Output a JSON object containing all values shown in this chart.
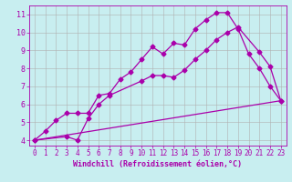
{
  "title": "",
  "xlabel": "Windchill (Refroidissement éolien,°C)",
  "ylabel": "",
  "xlim": [
    -0.5,
    23.5
  ],
  "ylim": [
    3.7,
    11.5
  ],
  "xticks": [
    0,
    1,
    2,
    3,
    4,
    5,
    6,
    7,
    8,
    9,
    10,
    11,
    12,
    13,
    14,
    15,
    16,
    17,
    18,
    19,
    20,
    21,
    22,
    23
  ],
  "yticks": [
    4,
    5,
    6,
    7,
    8,
    9,
    10,
    11
  ],
  "bg_color": "#c8eef0",
  "line_color": "#aa00aa",
  "grid_color": "#b0b0b0",
  "line1_x": [
    0,
    1,
    2,
    3,
    4,
    5,
    6,
    7,
    8,
    9,
    10,
    11,
    12,
    13,
    14,
    15,
    16,
    17,
    18,
    19,
    20,
    21,
    22,
    23
  ],
  "line1_y": [
    4.0,
    4.5,
    5.1,
    5.5,
    5.5,
    5.5,
    6.5,
    6.6,
    7.4,
    7.8,
    8.5,
    9.2,
    8.8,
    9.4,
    9.3,
    10.2,
    10.7,
    11.1,
    11.1,
    10.2,
    8.8,
    8.0,
    7.0,
    6.2
  ],
  "line2_x": [
    0,
    3,
    4,
    5,
    6,
    7,
    10,
    11,
    12,
    13,
    14,
    15,
    16,
    17,
    18,
    19,
    21,
    22,
    23
  ],
  "line2_y": [
    4.0,
    4.2,
    4.0,
    5.2,
    6.0,
    6.5,
    7.3,
    7.6,
    7.6,
    7.5,
    7.9,
    8.5,
    9.0,
    9.6,
    10.0,
    10.3,
    8.9,
    8.1,
    6.2
  ],
  "line3_x": [
    0,
    23
  ],
  "line3_y": [
    4.0,
    6.2
  ],
  "marker": "D",
  "markersize": 2.5,
  "linewidth": 0.9,
  "xlabel_fontsize": 6,
  "tick_fontsize": 5.5
}
